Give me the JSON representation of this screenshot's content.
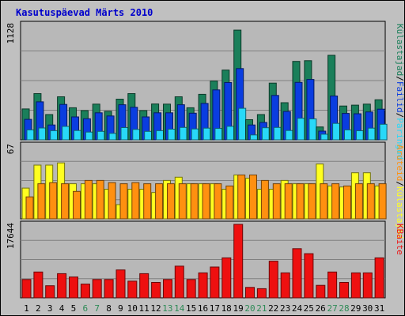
{
  "title": "Kasutuspäevad Märts 2010",
  "colors": {
    "outer_bg": "#c0c0c0",
    "plot_bg": "#b8b8b8",
    "title": "#0000cc",
    "pages": "#1a7f5a",
    "files": "#0a3de0",
    "hits": "#28d8f8",
    "visits": "#ffff20",
    "sites": "#ff9010",
    "kbytes": "#ee1010",
    "weekend_day": "#2e8b57",
    "weekday": "#000000"
  },
  "chart_data": [
    {
      "type": "bar",
      "name": "hits-panel",
      "ymax_label": "1128",
      "ylim": [
        0,
        1128
      ],
      "legend": [
        "Külastajad",
        "/",
        "Failid",
        "/",
        "Päringud"
      ],
      "legend_colors": [
        "#1a7f5a",
        "#000000",
        "#0a3de0",
        "#000000",
        "#28d8f8"
      ],
      "categories": [
        "1",
        "2",
        "3",
        "4",
        "5",
        "6",
        "7",
        "8",
        "9",
        "10",
        "11",
        "12",
        "13",
        "14",
        "15",
        "16",
        "17",
        "18",
        "19",
        "20",
        "21",
        "22",
        "23",
        "24",
        "25",
        "26",
        "27",
        "28",
        "29",
        "30",
        "31"
      ],
      "series": [
        {
          "name": "Külastajad",
          "color": "#1a7f5a",
          "values": [
            302,
            452,
            247,
            421,
            314,
            286,
            349,
            279,
            398,
            452,
            286,
            351,
            349,
            421,
            314,
            445,
            575,
            682,
            1073,
            197,
            247,
            555,
            363,
            767,
            774,
            126,
            827,
            331,
            339,
            349,
            392
          ]
        },
        {
          "name": "Failid",
          "color": "#0a3de0",
          "values": [
            200,
            372,
            145,
            346,
            224,
            206,
            264,
            233,
            343,
            318,
            224,
            264,
            264,
            343,
            260,
            356,
            488,
            560,
            697,
            145,
            170,
            434,
            277,
            562,
            590,
            85,
            429,
            258,
            255,
            273,
            300
          ]
        },
        {
          "name": "Päringud",
          "color": "#28d8f8",
          "values": [
            97,
            116,
            90,
            131,
            91,
            76,
            83,
            63,
            120,
            102,
            83,
            90,
            104,
            121,
            107,
            114,
            111,
            132,
            308,
            48,
            118,
            121,
            91,
            211,
            205,
            55,
            161,
            97,
            89,
            114,
            152
          ]
        }
      ]
    },
    {
      "type": "bar",
      "name": "visits-panel",
      "ymax_label": "67",
      "ylim": [
        0,
        67
      ],
      "legend": [
        "Aruteid",
        "/",
        "Külastajad"
      ],
      "legend_colors": [
        "#ff9010",
        "#000000",
        "#ffff20"
      ],
      "categories": [
        "1",
        "2",
        "3",
        "4",
        "5",
        "6",
        "7",
        "8",
        "9",
        "10",
        "11",
        "12",
        "13",
        "14",
        "15",
        "16",
        "17",
        "18",
        "19",
        "20",
        "21",
        "22",
        "23",
        "24",
        "25",
        "26",
        "27",
        "28",
        "29",
        "30",
        "31"
      ],
      "series": [
        {
          "name": "Külastajad",
          "color": "#ffff20",
          "values": [
            28,
            49,
            49,
            51,
            32,
            32,
            32,
            27,
            13,
            27,
            27,
            24,
            35,
            38,
            32,
            32,
            32,
            27,
            40,
            37,
            27,
            27,
            35,
            32,
            32,
            50,
            30,
            29,
            42,
            42,
            30
          ]
        },
        {
          "name": "Aruteid",
          "color": "#ff9010",
          "values": [
            20,
            32,
            33,
            32,
            25,
            35,
            35,
            33,
            32,
            33,
            32,
            32,
            32,
            32,
            32,
            32,
            32,
            30,
            40,
            40,
            35,
            32,
            32,
            32,
            32,
            32,
            32,
            30,
            32,
            32,
            32
          ]
        }
      ]
    },
    {
      "type": "bar",
      "name": "kbytes-panel",
      "ymax_label": "17644",
      "ylim": [
        0,
        17644
      ],
      "legend": [
        "KBaite"
      ],
      "legend_colors": [
        "#ee1010"
      ],
      "categories": [
        "1",
        "2",
        "3",
        "4",
        "5",
        "6",
        "7",
        "8",
        "9",
        "10",
        "11",
        "12",
        "13",
        "14",
        "15",
        "16",
        "17",
        "18",
        "19",
        "20",
        "21",
        "22",
        "23",
        "24",
        "25",
        "26",
        "27",
        "28",
        "29",
        "30",
        "31"
      ],
      "series": [
        {
          "name": "KBaite",
          "color": "#ee1010",
          "values": [
            4400,
            6200,
            2900,
            5800,
            5000,
            3300,
            4400,
            4400,
            6700,
            4000,
            5800,
            3700,
            4400,
            7600,
            4400,
            6000,
            7400,
            9600,
            17644,
            2500,
            2200,
            8800,
            6000,
            11800,
            10600,
            3000,
            6200,
            3700,
            6000,
            6000,
            9600
          ]
        }
      ]
    }
  ]
}
